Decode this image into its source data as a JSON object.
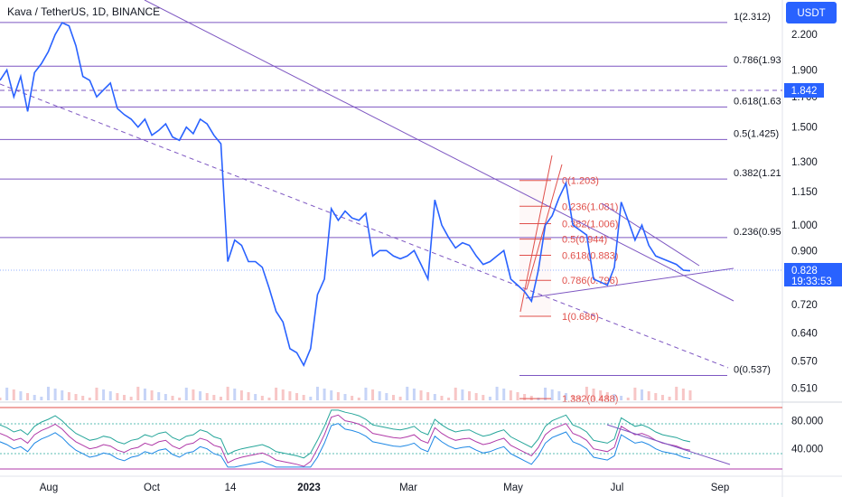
{
  "header": {
    "title": "Kava / TetherUS, 1D, BINANCE",
    "currency_button": "USDT"
  },
  "colors": {
    "price_line": "#2962ff",
    "fib_lines": "#7e57c2",
    "fib_red": "#e0504b",
    "osc_pink": "#b03aa8",
    "osc_cyan": "#26a69a",
    "osc_blue": "#1e88e5",
    "tag_blue": "#2962ff",
    "volume_up": "#f7c6c6",
    "volume_down": "#c6d4f7"
  },
  "price_tags": {
    "dashed_level": "1.842",
    "last_price": "0.828",
    "countdown": "19:33:53"
  },
  "chart_data": [
    {
      "type": "line",
      "title": "Kava / TetherUS, 1D, BINANCE",
      "scale": "log",
      "y_axis_ticks": [
        "2.200",
        "1.900",
        "1.700",
        "1.500",
        "1.300",
        "1.150",
        "1.000",
        "0.900",
        "0.720",
        "0.640",
        "0.570",
        "0.510"
      ],
      "x_axis_labels": [
        "Aug",
        "Oct",
        "14",
        "2023",
        "Mar",
        "May",
        "Jul",
        "Sep"
      ],
      "x_axis_bold": [
        "2023"
      ],
      "ylim": [
        0.49,
        2.5
      ],
      "series": [
        {
          "values": [
            1.82,
            1.9,
            1.7,
            1.85,
            1.6,
            1.88,
            1.95,
            2.05,
            2.2,
            2.31,
            2.28,
            2.1,
            1.85,
            1.82,
            1.7,
            1.75,
            1.8,
            1.62,
            1.58,
            1.55,
            1.5,
            1.55,
            1.45,
            1.48,
            1.52,
            1.44,
            1.42,
            1.5,
            1.46,
            1.55,
            1.52,
            1.45,
            1.4,
            0.86,
            0.94,
            0.92,
            0.86,
            0.86,
            0.84,
            0.77,
            0.7,
            0.67,
            0.6,
            0.59,
            0.56,
            0.6,
            0.75,
            0.8,
            1.07,
            1.02,
            1.06,
            1.03,
            1.02,
            1.05,
            0.88,
            0.9,
            0.9,
            0.88,
            0.87,
            0.88,
            0.9,
            0.85,
            0.8,
            1.11,
            1.0,
            0.95,
            0.91,
            0.93,
            0.92,
            0.88,
            0.85,
            0.86,
            0.88,
            0.9,
            0.8,
            0.78,
            0.76,
            0.73,
            0.83,
            1.0,
            1.04,
            1.12,
            1.19,
            1.0,
            0.98,
            0.96,
            0.8,
            0.79,
            0.78,
            0.84,
            1.1,
            1.02,
            0.94,
            1.0,
            0.92,
            0.88,
            0.87,
            0.86,
            0.85,
            0.83,
            0.828
          ]
        }
      ],
      "fib_retracement": [
        {
          "ratio": "1",
          "value": 2.312,
          "label": "1(2.312)"
        },
        {
          "ratio": "0.786",
          "value": 1.93,
          "label": "0.786(1.93"
        },
        {
          "ratio": "0.618",
          "value": 1.63,
          "label": "0.618(1.63"
        },
        {
          "ratio": "0.5",
          "value": 1.425,
          "label": "0.5(1.425)"
        },
        {
          "ratio": "0.382",
          "value": 1.21,
          "label": "0.382(1.21"
        },
        {
          "ratio": "0.236",
          "value": 0.95,
          "label": "0.236(0.95"
        },
        {
          "ratio": "0",
          "value": 0.537,
          "label": "0(0.537)"
        }
      ],
      "fib_retracement_small": [
        {
          "value": 1.203,
          "label": "0(1.203)"
        },
        {
          "value": 1.081,
          "label": "0.236(1.081)"
        },
        {
          "value": 1.006,
          "label": "0.382(1.006)"
        },
        {
          "value": 0.944,
          "label": "0.5(0.944)"
        },
        {
          "value": 0.883,
          "label": "0.618(0.883)"
        },
        {
          "value": 0.796,
          "label": "0.786(0.796)"
        },
        {
          "value": 0.686,
          "label": "1(0.686)"
        },
        {
          "value": 0.488,
          "label": "1.382(0.488)"
        }
      ]
    },
    {
      "type": "line",
      "title": "",
      "y_axis_ticks": [
        "80.000",
        "40.000"
      ],
      "ylim": [
        10,
        100
      ],
      "series": [
        {
          "values": [
            62,
            58,
            52,
            55,
            48,
            60,
            66,
            70,
            75,
            68,
            58,
            50,
            45,
            40,
            42,
            46,
            44,
            38,
            35,
            40,
            42,
            48,
            45,
            50,
            52,
            44,
            40,
            46,
            48,
            55,
            52,
            45,
            42,
            20,
            25,
            28,
            30,
            32,
            34,
            30,
            24,
            22,
            20,
            18,
            15,
            22,
            40,
            60,
            85,
            88,
            80,
            78,
            75,
            70,
            62,
            60,
            58,
            56,
            55,
            57,
            60,
            52,
            48,
            70,
            62,
            56,
            52,
            54,
            55,
            50,
            46,
            48,
            52,
            55,
            45,
            40,
            35,
            30,
            42,
            60,
            68,
            72,
            76,
            62,
            58,
            52,
            40,
            38,
            36,
            42,
            72,
            66,
            60,
            62,
            58,
            52,
            48,
            46,
            44,
            40,
            38
          ]
        }
      ]
    }
  ]
}
